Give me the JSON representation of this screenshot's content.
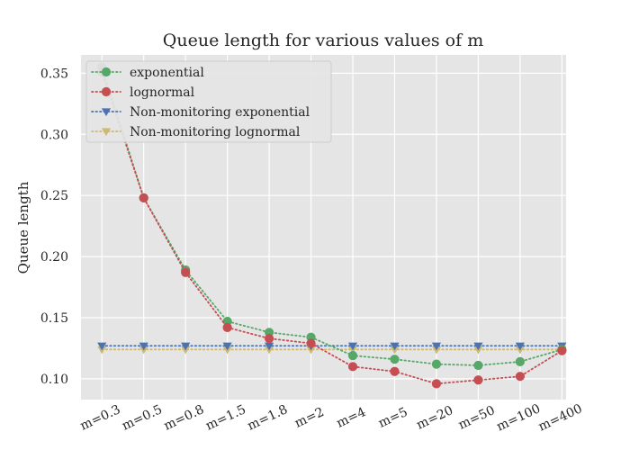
{
  "chart_data": {
    "type": "line",
    "title": "Queue length for various values of m",
    "xlabel": "",
    "ylabel": "Queue length",
    "categories": [
      "m=0.3",
      "m=0.5",
      "m=0.8",
      "m=1.5",
      "m=1.8",
      "m=2",
      "m=4",
      "m=5",
      "m=20",
      "m=50",
      "m=100",
      "m=400"
    ],
    "ylim": [
      0.083,
      0.365
    ],
    "yticks": [
      0.1,
      0.15,
      0.2,
      0.25,
      0.3,
      0.35
    ],
    "ytick_labels": [
      "0.10",
      "0.15",
      "0.20",
      "0.25",
      "0.30",
      "0.35"
    ],
    "grid": true,
    "legend_position": "top-left",
    "series": [
      {
        "name": "exponential",
        "color": "#55a868",
        "marker": "circle",
        "linestyle": "dotted",
        "values": [
          0.355,
          0.248,
          0.189,
          0.147,
          0.138,
          0.134,
          0.119,
          0.116,
          0.112,
          0.111,
          0.114,
          0.124
        ]
      },
      {
        "name": "lognormal",
        "color": "#c44e52",
        "marker": "circle",
        "linestyle": "dotted",
        "values": [
          0.351,
          0.248,
          0.187,
          0.142,
          0.133,
          0.129,
          0.11,
          0.106,
          0.096,
          0.099,
          0.102,
          0.123
        ]
      },
      {
        "name": "Non-monitoring exponential",
        "color": "#4c72b0",
        "marker": "triangle-down",
        "linestyle": "dotted",
        "values": [
          0.127,
          0.127,
          0.127,
          0.127,
          0.127,
          0.127,
          0.127,
          0.127,
          0.127,
          0.127,
          0.127,
          0.127
        ]
      },
      {
        "name": "Non-monitoring lognormal",
        "color": "#ccb974",
        "marker": "triangle-down",
        "linestyle": "dotted",
        "values": [
          0.124,
          0.124,
          0.124,
          0.124,
          0.124,
          0.124,
          0.124,
          0.124,
          0.124,
          0.124,
          0.124,
          0.124
        ]
      }
    ]
  }
}
